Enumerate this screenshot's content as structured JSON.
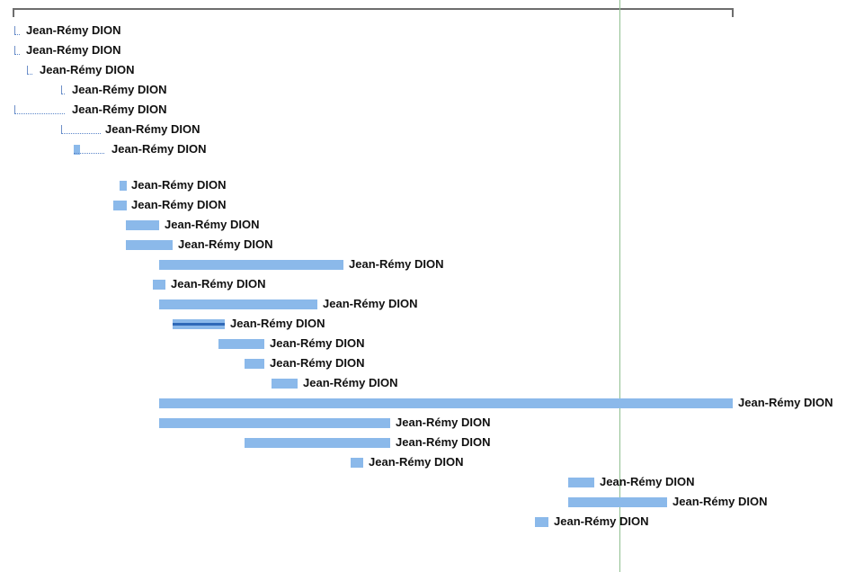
{
  "gantt": {
    "summary_label": "",
    "tasks": [
      {
        "id": 1,
        "resource": "Jean-Rémy DION",
        "kind": "milestone"
      },
      {
        "id": 2,
        "resource": "Jean-Rémy DION",
        "kind": "milestone"
      },
      {
        "id": 3,
        "resource": "Jean-Rémy DION",
        "kind": "milestone"
      },
      {
        "id": 4,
        "resource": "Jean-Rémy DION",
        "kind": "milestone"
      },
      {
        "id": 5,
        "resource": "Jean-Rémy DION",
        "kind": "milestone"
      },
      {
        "id": 6,
        "resource": "Jean-Rémy DION",
        "kind": "milestone"
      },
      {
        "id": 7,
        "resource": "Jean-Rémy DION",
        "kind": "task"
      },
      {
        "id": 8,
        "resource": "Jean-Rémy DION",
        "kind": "task"
      },
      {
        "id": 9,
        "resource": "Jean-Rémy DION",
        "kind": "task"
      },
      {
        "id": 10,
        "resource": "Jean-Rémy DION",
        "kind": "task"
      },
      {
        "id": 11,
        "resource": "Jean-Rémy DION",
        "kind": "task"
      },
      {
        "id": 12,
        "resource": "Jean-Rémy DION",
        "kind": "task"
      },
      {
        "id": 13,
        "resource": "Jean-Rémy DION",
        "kind": "task"
      },
      {
        "id": 14,
        "resource": "Jean-Rémy DION",
        "kind": "task"
      },
      {
        "id": 15,
        "resource": "Jean-Rémy DION",
        "kind": "task",
        "progress": 1.0
      },
      {
        "id": 16,
        "resource": "Jean-Rémy DION",
        "kind": "task"
      },
      {
        "id": 17,
        "resource": "Jean-Rémy DION",
        "kind": "task"
      },
      {
        "id": 18,
        "resource": "Jean-Rémy DION",
        "kind": "task"
      },
      {
        "id": 19,
        "resource": "Jean-Rémy DION",
        "kind": "task"
      },
      {
        "id": 20,
        "resource": "Jean-Rémy DION",
        "kind": "task"
      },
      {
        "id": 21,
        "resource": "Jean-Rémy DION",
        "kind": "task"
      },
      {
        "id": 22,
        "resource": "Jean-Rémy DION",
        "kind": "task"
      },
      {
        "id": 23,
        "resource": "Jean-Rémy DION",
        "kind": "task"
      },
      {
        "id": 24,
        "resource": "Jean-Rémy DION",
        "kind": "task"
      },
      {
        "id": 25,
        "resource": "Jean-Rémy DION",
        "kind": "task"
      }
    ]
  },
  "colors": {
    "task_bar": "#8bb9ea",
    "progress_bar": "#2f69b8",
    "summary_bar": "#6d6d6d",
    "today_line": "#8fc08f"
  }
}
